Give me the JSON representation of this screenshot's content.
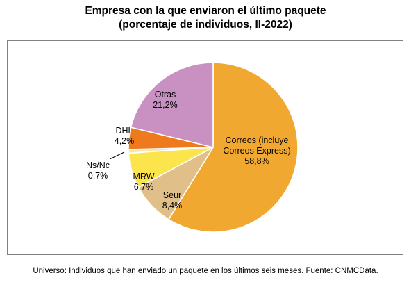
{
  "chart_data": {
    "type": "pie",
    "title": "Empresa con la que enviaron el último paquete",
    "subtitle": "(porcentaje de individuos, II-2022)",
    "slices": [
      {
        "label_lines": [
          "Correos (incluye",
          "Correos Express)"
        ],
        "value": 58.8,
        "value_label": "58,8%",
        "color": "#F0A830"
      },
      {
        "label_lines": [
          "Seur"
        ],
        "value": 8.4,
        "value_label": "8,4%",
        "color": "#E0C088"
      },
      {
        "label_lines": [
          "MRW"
        ],
        "value": 6.7,
        "value_label": "6,7%",
        "color": "#FBE44C"
      },
      {
        "label_lines": [
          "Ns/Nc"
        ],
        "value": 0.7,
        "value_label": "0,7%",
        "color": "#F5E6B8"
      },
      {
        "label_lines": [
          "DHL"
        ],
        "value": 4.2,
        "value_label": "4,2%",
        "color": "#EE7A1E"
      },
      {
        "label_lines": [
          "Otras"
        ],
        "value": 21.2,
        "value_label": "21,2%",
        "color": "#C991C2"
      }
    ],
    "start_position": "top (12 o'clock), clockwise"
  },
  "caption": "Universo: Individuos que han enviado un paquete en los últimos seis meses. Fuente: CNMCData."
}
